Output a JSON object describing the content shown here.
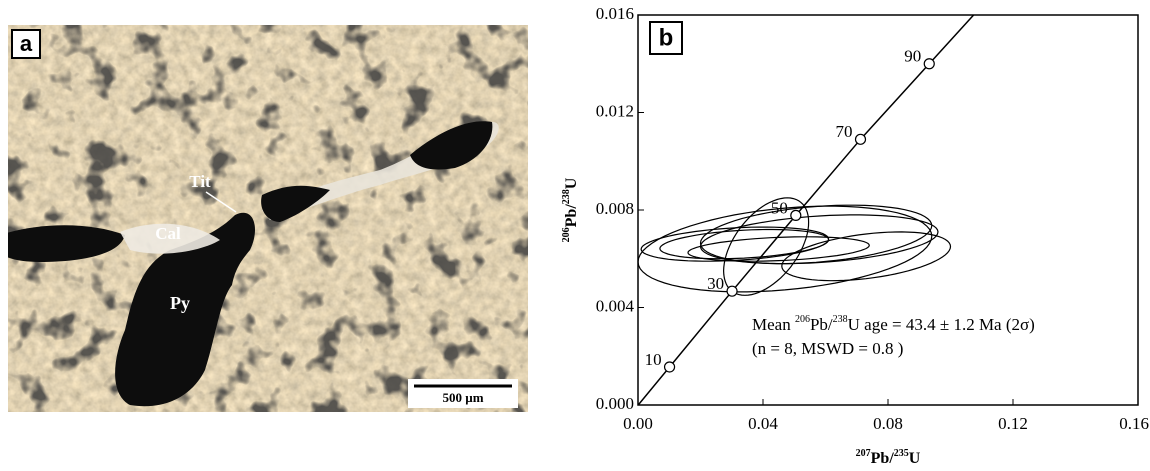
{
  "photo": {
    "panel": "a",
    "labels": [
      "Tit",
      "Cal",
      "Py"
    ],
    "scale_bar": "500 µm"
  },
  "chart_data": {
    "type": "concordia",
    "panel": "b",
    "xlabel": [
      "207",
      "Pb/",
      "235",
      "U"
    ],
    "ylabel": [
      "206",
      "Pb/",
      "238",
      "U"
    ],
    "annotation": [
      [
        "Mean ",
        "206",
        "Pb/",
        "238",
        "U age = 43.4 ± 1.2 Ma (2σ)"
      ],
      [
        "(n = 8, MSWD = 0.8 )"
      ]
    ],
    "xlim": [
      0,
      0.16
    ],
    "ylim": [
      0,
      0.016
    ],
    "xticks": [
      {
        "value": 0,
        "label": "0.00"
      },
      {
        "value": 0.04,
        "label": "0.04"
      },
      {
        "value": 0.08,
        "label": "0.08"
      },
      {
        "value": 0.12,
        "label": "0.12"
      },
      {
        "value": 0.16,
        "label": "0.16"
      }
    ],
    "yticks": [
      {
        "value": 0,
        "label": "0.000"
      },
      {
        "value": 0.004,
        "label": "0.004"
      },
      {
        "value": 0.008,
        "label": "0.008"
      },
      {
        "value": 0.012,
        "label": "0.012"
      },
      {
        "value": 0.016,
        "label": "0.016"
      }
    ],
    "concordia": {
      "x": [
        0.0101,
        0.0301,
        0.0505,
        0.0712,
        0.0932
      ],
      "values": [
        0.00156,
        0.00467,
        0.00778,
        0.0109,
        0.014
      ],
      "point_labels": [
        "10",
        "30",
        "50",
        "70",
        "90"
      ]
    },
    "ellipses": [
      {
        "x": 0.047,
        "y": 0.0064,
        "sx": 0.047,
        "sy": 0.00176,
        "rho": 0.3
      },
      {
        "x": 0.031,
        "y": 0.0066,
        "sx": 0.03,
        "sy": 0.0007,
        "rho": 0.3
      },
      {
        "x": 0.041,
        "y": 0.0065,
        "sx": 0.0136,
        "sy": 0.002,
        "rho": 0.5
      },
      {
        "x": 0.057,
        "y": 0.007,
        "sx": 0.037,
        "sy": 0.0012,
        "rho": 0.3
      },
      {
        "x": 0.073,
        "y": 0.0061,
        "sx": 0.027,
        "sy": 0.001,
        "rho": 0.4
      },
      {
        "x": 0.034,
        "y": 0.0066,
        "sx": 0.027,
        "sy": 0.0006,
        "rho": 0.3
      },
      {
        "x": 0.045,
        "y": 0.0064,
        "sx": 0.029,
        "sy": 0.0005,
        "rho": 0.3
      },
      {
        "x": 0.058,
        "y": 0.0068,
        "sx": 0.038,
        "sy": 0.001,
        "rho": 0.3
      }
    ]
  }
}
